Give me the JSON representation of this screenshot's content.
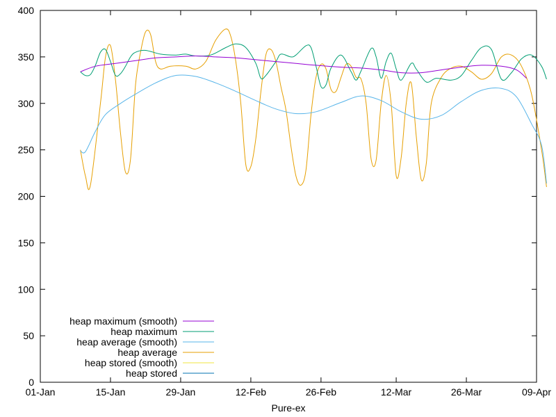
{
  "chart_data": {
    "type": "line",
    "xlabel": "Pure-ex",
    "ylabel": "",
    "ylim": [
      0,
      400
    ],
    "yticks": [
      0,
      50,
      100,
      150,
      200,
      250,
      300,
      350,
      400
    ],
    "xlim": [
      "2020-01-01",
      "2020-04-09"
    ],
    "xticks": [
      {
        "date": "2020-01-01",
        "label": "01-Jan"
      },
      {
        "date": "2020-01-15",
        "label": "15-Jan"
      },
      {
        "date": "2020-01-29",
        "label": "29-Jan"
      },
      {
        "date": "2020-02-12",
        "label": "12-Feb"
      },
      {
        "date": "2020-02-26",
        "label": "26-Feb"
      },
      {
        "date": "2020-03-12",
        "label": "12-Mar"
      },
      {
        "date": "2020-03-26",
        "label": "26-Mar"
      },
      {
        "date": "2020-04-09",
        "label": "09-Apr"
      }
    ],
    "legend_position": "bottom-left",
    "grid": false,
    "series": [
      {
        "name": "heap maximum (smooth)",
        "color": "#9400d3",
        "points": [
          [
            "2020-01-09",
            334
          ],
          [
            "2020-01-12",
            340
          ],
          [
            "2020-01-16",
            343
          ],
          [
            "2020-01-20",
            346
          ],
          [
            "2020-01-24",
            349
          ],
          [
            "2020-01-28",
            350
          ],
          [
            "2020-02-01",
            351
          ],
          [
            "2020-02-05",
            350
          ],
          [
            "2020-02-09",
            349
          ],
          [
            "2020-02-13",
            347
          ],
          [
            "2020-02-17",
            345
          ],
          [
            "2020-02-21",
            343
          ],
          [
            "2020-02-25",
            341
          ],
          [
            "2020-03-01",
            339
          ],
          [
            "2020-03-05",
            338
          ],
          [
            "2020-03-09",
            336
          ],
          [
            "2020-03-13",
            333
          ],
          [
            "2020-03-17",
            333
          ],
          [
            "2020-03-21",
            336
          ],
          [
            "2020-03-25",
            339
          ],
          [
            "2020-03-29",
            341
          ],
          [
            "2020-04-02",
            340
          ],
          [
            "2020-04-05",
            336
          ],
          [
            "2020-04-07",
            327
          ]
        ]
      },
      {
        "name": "heap maximum",
        "color": "#009e73",
        "points": [
          [
            "2020-01-09",
            334
          ],
          [
            "2020-01-10",
            330
          ],
          [
            "2020-01-11",
            331
          ],
          [
            "2020-01-12",
            341
          ],
          [
            "2020-01-13",
            355
          ],
          [
            "2020-01-14",
            358
          ],
          [
            "2020-01-15",
            345
          ],
          [
            "2020-01-16",
            330
          ],
          [
            "2020-01-17",
            332
          ],
          [
            "2020-01-18",
            340
          ],
          [
            "2020-01-19",
            350
          ],
          [
            "2020-01-20",
            355
          ],
          [
            "2020-01-22",
            357
          ],
          [
            "2020-01-25",
            353
          ],
          [
            "2020-01-28",
            352
          ],
          [
            "2020-01-30",
            353
          ],
          [
            "2020-02-01",
            351
          ],
          [
            "2020-02-04",
            352
          ],
          [
            "2020-02-07",
            360
          ],
          [
            "2020-02-09",
            364
          ],
          [
            "2020-02-11",
            360
          ],
          [
            "2020-02-13",
            343
          ],
          [
            "2020-02-14",
            327
          ],
          [
            "2020-02-15",
            330
          ],
          [
            "2020-02-17",
            345
          ],
          [
            "2020-02-18",
            353
          ],
          [
            "2020-02-20",
            350
          ],
          [
            "2020-02-21",
            352
          ],
          [
            "2020-02-23",
            362
          ],
          [
            "2020-02-24",
            360
          ],
          [
            "2020-02-25",
            340
          ],
          [
            "2020-02-26",
            318
          ],
          [
            "2020-02-27",
            320
          ],
          [
            "2020-02-28",
            338
          ],
          [
            "2020-03-01",
            352
          ],
          [
            "2020-03-03",
            334
          ],
          [
            "2020-03-04",
            325
          ],
          [
            "2020-03-05",
            335
          ],
          [
            "2020-03-07",
            359
          ],
          [
            "2020-03-08",
            350
          ],
          [
            "2020-03-09",
            327
          ],
          [
            "2020-03-10",
            345
          ],
          [
            "2020-03-11",
            354
          ],
          [
            "2020-03-12",
            337
          ],
          [
            "2020-03-13",
            325
          ],
          [
            "2020-03-15",
            343
          ],
          [
            "2020-03-16",
            337
          ],
          [
            "2020-03-18",
            323
          ],
          [
            "2020-03-20",
            327
          ],
          [
            "2020-03-23",
            325
          ],
          [
            "2020-03-25",
            330
          ],
          [
            "2020-03-27",
            346
          ],
          [
            "2020-03-29",
            360
          ],
          [
            "2020-03-31",
            358
          ],
          [
            "2020-04-02",
            326
          ],
          [
            "2020-04-04",
            333
          ],
          [
            "2020-04-06",
            348
          ],
          [
            "2020-04-08",
            352
          ],
          [
            "2020-04-10",
            340
          ],
          [
            "2020-04-11",
            326
          ]
        ]
      },
      {
        "name": "heap average (smooth)",
        "color": "#56b4e9",
        "points": [
          [
            "2020-01-09",
            249
          ],
          [
            "2020-01-10",
            248
          ],
          [
            "2020-01-12",
            270
          ],
          [
            "2020-01-14",
            288
          ],
          [
            "2020-01-17",
            300
          ],
          [
            "2020-01-20",
            310
          ],
          [
            "2020-01-24",
            322
          ],
          [
            "2020-01-28",
            330
          ],
          [
            "2020-02-01",
            329
          ],
          [
            "2020-02-05",
            322
          ],
          [
            "2020-02-09",
            313
          ],
          [
            "2020-02-13",
            303
          ],
          [
            "2020-02-17",
            294
          ],
          [
            "2020-02-21",
            289
          ],
          [
            "2020-02-25",
            291
          ],
          [
            "2020-03-01",
            301
          ],
          [
            "2020-03-05",
            308
          ],
          [
            "2020-03-09",
            303
          ],
          [
            "2020-03-13",
            291
          ],
          [
            "2020-03-17",
            283
          ],
          [
            "2020-03-21",
            287
          ],
          [
            "2020-03-25",
            302
          ],
          [
            "2020-03-29",
            314
          ],
          [
            "2020-04-02",
            316
          ],
          [
            "2020-04-05",
            307
          ],
          [
            "2020-04-08",
            278
          ],
          [
            "2020-04-10",
            255
          ],
          [
            "2020-04-11",
            214
          ]
        ]
      },
      {
        "name": "heap average",
        "color": "#e69f00",
        "points": [
          [
            "2020-01-09",
            250
          ],
          [
            "2020-01-10",
            222
          ],
          [
            "2020-01-11",
            212
          ],
          [
            "2020-01-13",
            300
          ],
          [
            "2020-01-14",
            350
          ],
          [
            "2020-01-15",
            362
          ],
          [
            "2020-01-16",
            325
          ],
          [
            "2020-01-17",
            268
          ],
          [
            "2020-01-18",
            226
          ],
          [
            "2020-01-19",
            240
          ],
          [
            "2020-01-20",
            320
          ],
          [
            "2020-01-21",
            355
          ],
          [
            "2020-01-22",
            377
          ],
          [
            "2020-01-23",
            374
          ],
          [
            "2020-01-24",
            345
          ],
          [
            "2020-01-25",
            337
          ],
          [
            "2020-01-27",
            340
          ],
          [
            "2020-01-30",
            340
          ],
          [
            "2020-02-01",
            337
          ],
          [
            "2020-02-03",
            345
          ],
          [
            "2020-02-05",
            368
          ],
          [
            "2020-02-07",
            380
          ],
          [
            "2020-02-08",
            372
          ],
          [
            "2020-02-09",
            345
          ],
          [
            "2020-02-10",
            300
          ],
          [
            "2020-02-11",
            234
          ],
          [
            "2020-02-12",
            232
          ],
          [
            "2020-02-13",
            262
          ],
          [
            "2020-02-14",
            312
          ],
          [
            "2020-02-15",
            352
          ],
          [
            "2020-02-16",
            358
          ],
          [
            "2020-02-17",
            345
          ],
          [
            "2020-02-18",
            318
          ],
          [
            "2020-02-19",
            293
          ],
          [
            "2020-02-20",
            254
          ],
          [
            "2020-02-21",
            222
          ],
          [
            "2020-02-22",
            212
          ],
          [
            "2020-02-23",
            228
          ],
          [
            "2020-02-24",
            288
          ],
          [
            "2020-02-25",
            328
          ],
          [
            "2020-02-26",
            342
          ],
          [
            "2020-02-27",
            337
          ],
          [
            "2020-02-28",
            315
          ],
          [
            "2020-02-29",
            313
          ],
          [
            "2020-03-01",
            328
          ],
          [
            "2020-03-02",
            342
          ],
          [
            "2020-03-03",
            340
          ],
          [
            "2020-03-04",
            328
          ],
          [
            "2020-03-05",
            326
          ],
          [
            "2020-03-06",
            300
          ],
          [
            "2020-03-07",
            240
          ],
          [
            "2020-03-08",
            239
          ],
          [
            "2020-03-09",
            300
          ],
          [
            "2020-03-10",
            330
          ],
          [
            "2020-03-11",
            300
          ],
          [
            "2020-03-12",
            222
          ],
          [
            "2020-03-13",
            242
          ],
          [
            "2020-03-14",
            300
          ],
          [
            "2020-03-15",
            322
          ],
          [
            "2020-03-16",
            265
          ],
          [
            "2020-03-17",
            218
          ],
          [
            "2020-03-18",
            235
          ],
          [
            "2020-03-19",
            300
          ],
          [
            "2020-03-21",
            328
          ],
          [
            "2020-03-23",
            338
          ],
          [
            "2020-03-25",
            340
          ],
          [
            "2020-03-27",
            334
          ],
          [
            "2020-03-29",
            326
          ],
          [
            "2020-03-31",
            332
          ],
          [
            "2020-04-02",
            350
          ],
          [
            "2020-04-04",
            352
          ],
          [
            "2020-04-06",
            340
          ],
          [
            "2020-04-08",
            310
          ],
          [
            "2020-04-10",
            250
          ],
          [
            "2020-04-11",
            210
          ]
        ]
      },
      {
        "name": "heap stored (smooth)",
        "color": "#f0e442",
        "points": []
      },
      {
        "name": "heap stored",
        "color": "#0072b2",
        "points": []
      }
    ]
  }
}
